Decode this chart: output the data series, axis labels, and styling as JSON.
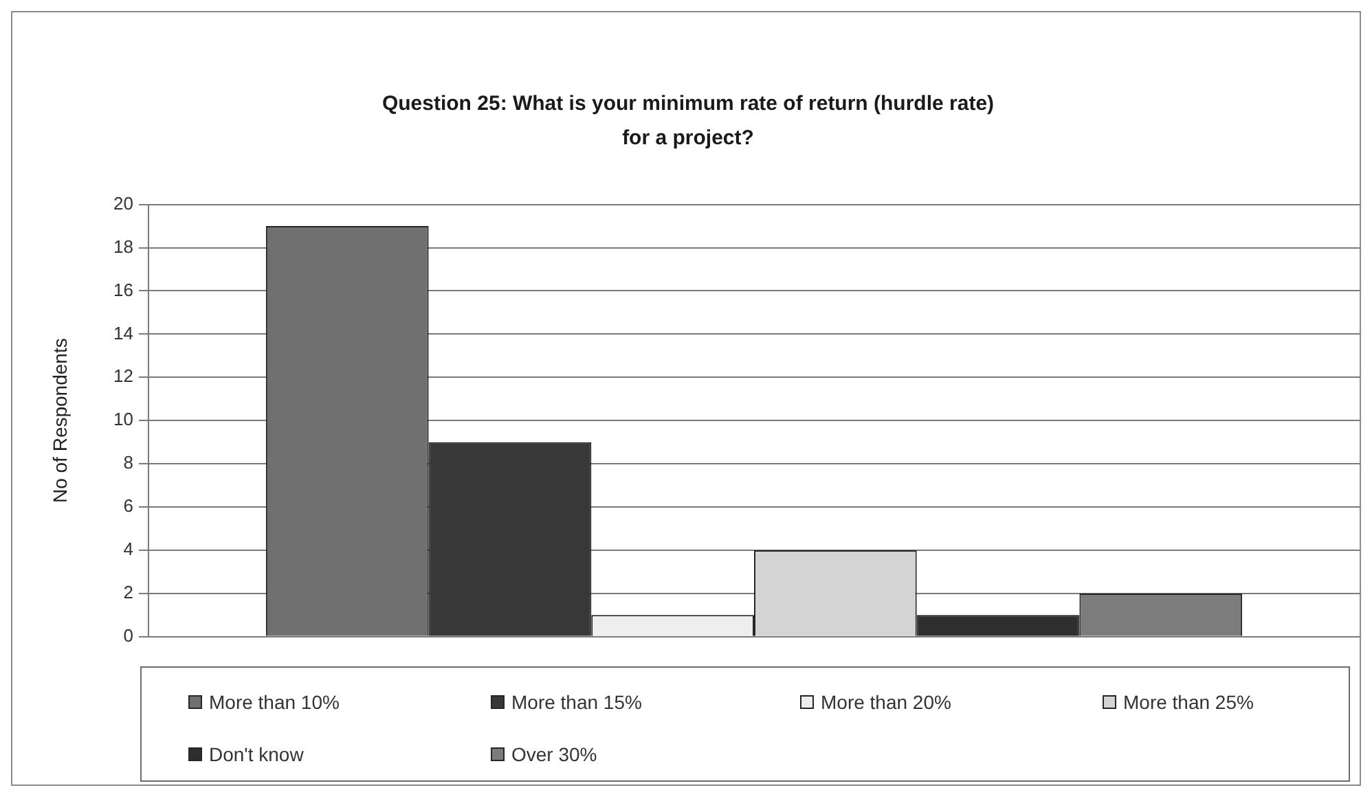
{
  "chart_data": {
    "type": "bar",
    "title": "Question 25: What is your minimum rate of return (hurdle rate) for a project?",
    "ylabel": "No of Respondents",
    "categories": [
      null
    ],
    "series": [
      {
        "name": "More than 10%",
        "color": "#707070",
        "values": [
          19
        ]
      },
      {
        "name": "More than 15%",
        "color": "#383838",
        "values": [
          9
        ]
      },
      {
        "name": "More than 20%",
        "color": "#eeeeee",
        "values": [
          1
        ]
      },
      {
        "name": "More than 25%",
        "color": "#d4d4d4",
        "values": [
          4
        ]
      },
      {
        "name": "Don't know",
        "color": "#2e2e2e",
        "values": [
          1
        ]
      },
      {
        "name": "Over 30%",
        "color": "#7c7c7c",
        "values": [
          2
        ]
      }
    ],
    "ylim": [
      0,
      20
    ],
    "yticks": [
      0,
      2,
      4,
      6,
      8,
      10,
      12,
      14,
      16,
      18,
      20
    ],
    "grid": "y",
    "legend": "bottom"
  }
}
